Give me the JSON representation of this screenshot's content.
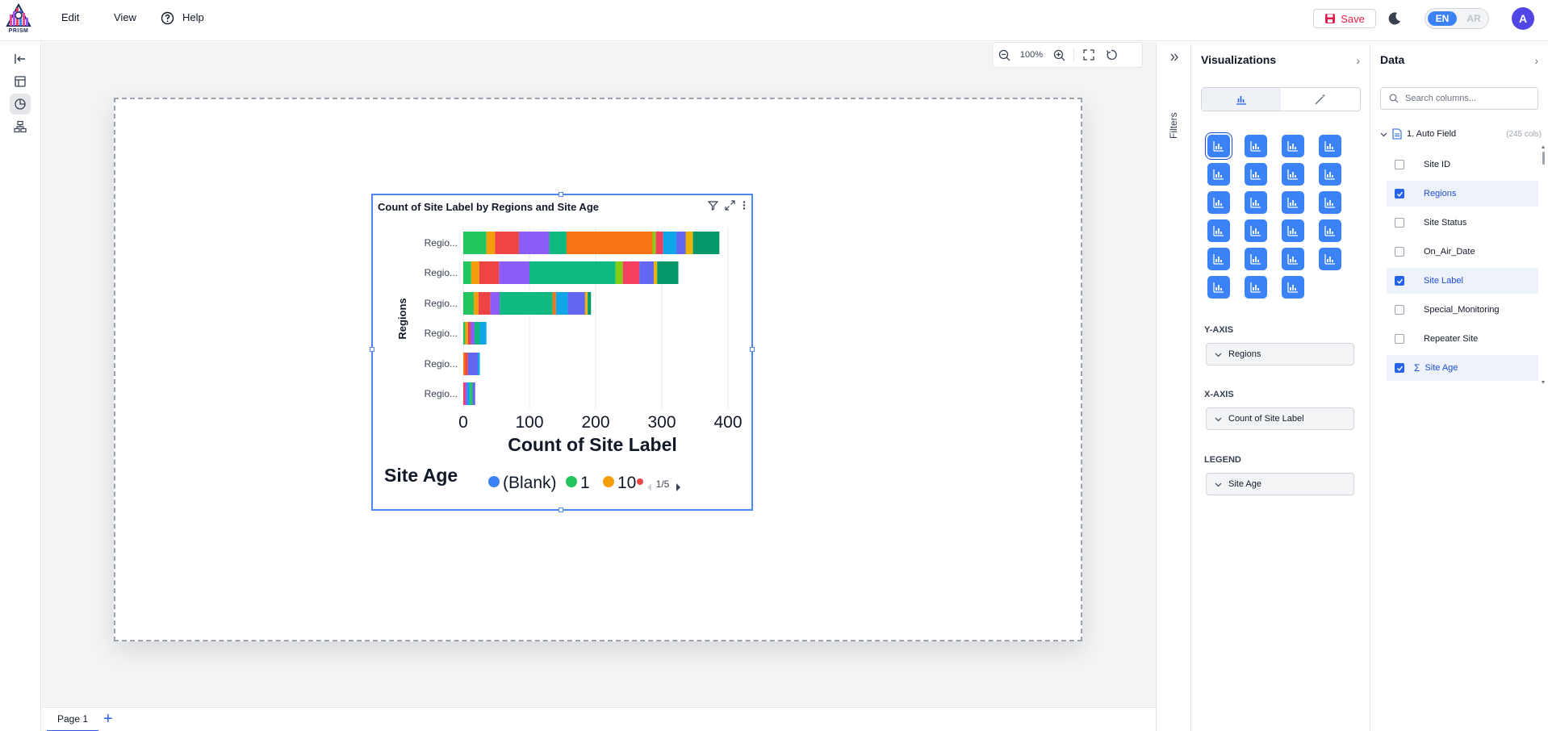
{
  "app": {
    "logo_text": "PRISM"
  },
  "menu": {
    "edit": "Edit",
    "view": "View",
    "help": "Help"
  },
  "toolbar": {
    "save_label": "Save",
    "lang_en": "EN",
    "lang_ar": "AR",
    "avatar_initial": "A"
  },
  "zoom": {
    "level": "100%"
  },
  "pages": {
    "tabs": [
      "Page 1"
    ],
    "add": "+"
  },
  "filters": {
    "label": "Filters"
  },
  "visualizations": {
    "title": "Visualizations",
    "y_axis_label": "Y-AXIS",
    "y_axis_field": "Regions",
    "x_axis_label": "X-AXIS",
    "x_axis_field": "Count of Site Label",
    "legend_label": "LEGEND",
    "legend_field": "Site Age"
  },
  "data_panel": {
    "title": "Data",
    "search_placeholder": "Search columns...",
    "table_name": "1. Auto Field",
    "col_count": "(245 cols)",
    "columns": [
      {
        "label": "Site ID",
        "checked": false
      },
      {
        "label": "Regions",
        "checked": true
      },
      {
        "label": "Site Status",
        "checked": false
      },
      {
        "label": "On_Air_Date",
        "checked": false
      },
      {
        "label": "Site Label",
        "checked": true
      },
      {
        "label": "Special_Monitoring",
        "checked": false
      },
      {
        "label": "Repeater Site",
        "checked": false
      },
      {
        "label": "Site Age",
        "checked": true,
        "measure": true
      }
    ]
  },
  "chart_card": {
    "title": "Count of Site Label by Regions and Site Age",
    "pager": "1/5"
  },
  "chart_data": {
    "type": "bar",
    "orientation": "horizontal",
    "stacked": true,
    "title": "Count of Site Label by Regions and Site Age",
    "xlabel": "Count of Site Label",
    "ylabel": "Regions",
    "legend_title": "Site Age",
    "legend_visible": [
      "(Blank)",
      "1",
      "10"
    ],
    "categories": [
      "Regio...",
      "Regio...",
      "Regio...",
      "Regio...",
      "Regio...",
      "Regio..."
    ],
    "xlim": [
      0,
      400
    ],
    "xticks": [
      0,
      100,
      200,
      300,
      400
    ],
    "bars": [
      {
        "segments": [
          {
            "v": 35,
            "c": "#22c55e"
          },
          {
            "v": 13,
            "c": "#f59e0b"
          },
          {
            "v": 36,
            "c": "#ef4444"
          },
          {
            "v": 46,
            "c": "#8b5cf6"
          },
          {
            "v": 26,
            "c": "#10b981"
          },
          {
            "v": 130,
            "c": "#f97316"
          },
          {
            "v": 5,
            "c": "#84cc16"
          },
          {
            "v": 11,
            "c": "#f43f5e"
          },
          {
            "v": 20,
            "c": "#0ea5e9"
          },
          {
            "v": 14,
            "c": "#6366f1"
          },
          {
            "v": 11,
            "c": "#eab308"
          },
          {
            "v": 40,
            "c": "#059669"
          }
        ]
      },
      {
        "segments": [
          {
            "v": 12,
            "c": "#22c55e"
          },
          {
            "v": 12,
            "c": "#f59e0b"
          },
          {
            "v": 30,
            "c": "#ef4444"
          },
          {
            "v": 46,
            "c": "#8b5cf6"
          },
          {
            "v": 130,
            "c": "#10b981"
          },
          {
            "v": 11,
            "c": "#84cc16"
          },
          {
            "v": 25,
            "c": "#f43f5e"
          },
          {
            "v": 22,
            "c": "#6366f1"
          },
          {
            "v": 5,
            "c": "#eab308"
          },
          {
            "v": 32,
            "c": "#059669"
          }
        ]
      },
      {
        "segments": [
          {
            "v": 16,
            "c": "#22c55e"
          },
          {
            "v": 7,
            "c": "#f59e0b"
          },
          {
            "v": 18,
            "c": "#ef4444"
          },
          {
            "v": 14,
            "c": "#8b5cf6"
          },
          {
            "v": 80,
            "c": "#10b981"
          },
          {
            "v": 5,
            "c": "#f97316"
          },
          {
            "v": 18,
            "c": "#0ea5e9"
          },
          {
            "v": 26,
            "c": "#6366f1"
          },
          {
            "v": 4,
            "c": "#eab308"
          },
          {
            "v": 5,
            "c": "#059669"
          }
        ]
      },
      {
        "segments": [
          {
            "v": 3,
            "c": "#22c55e"
          },
          {
            "v": 4,
            "c": "#f59e0b"
          },
          {
            "v": 4,
            "c": "#ef4444"
          },
          {
            "v": 6,
            "c": "#8b5cf6"
          },
          {
            "v": 8,
            "c": "#10b981"
          },
          {
            "v": 10,
            "c": "#0ea5e9"
          }
        ]
      },
      {
        "segments": [
          {
            "v": 3,
            "c": "#f97316"
          },
          {
            "v": 4,
            "c": "#ef4444"
          },
          {
            "v": 15,
            "c": "#6366f1"
          },
          {
            "v": 3,
            "c": "#0ea5e9"
          }
        ]
      },
      {
        "segments": [
          {
            "v": 3,
            "c": "#f43f5e"
          },
          {
            "v": 3,
            "c": "#8b5cf6"
          },
          {
            "v": 4,
            "c": "#0ea5e9"
          },
          {
            "v": 4,
            "c": "#22c55e"
          },
          {
            "v": 4,
            "c": "#6366f1"
          }
        ]
      }
    ],
    "legend_colors": [
      "#3b82f6",
      "#22c55e",
      "#f59e0b"
    ]
  }
}
